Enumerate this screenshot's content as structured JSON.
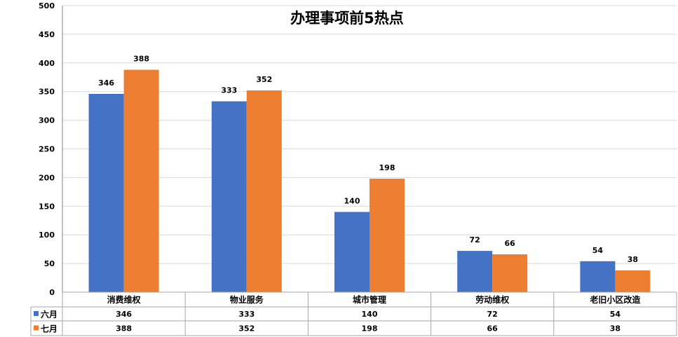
{
  "colors": {
    "series_1": "#4472C4",
    "series_2": "#ED7D31",
    "grid": "#D9D9D9",
    "axis": "#808080",
    "table_border": "#A6A6A6",
    "text": "#000000"
  },
  "chart_data": {
    "type": "bar",
    "title": "办理事项前5热点",
    "categories": [
      "消费维权",
      "物业服务",
      "城市管理",
      "劳动维权",
      "老旧小区改造"
    ],
    "series": [
      {
        "name": "六月",
        "values": [
          346,
          333,
          140,
          72,
          54
        ]
      },
      {
        "name": "七月",
        "values": [
          388,
          352,
          198,
          66,
          38
        ]
      }
    ],
    "ylim": [
      0,
      500
    ],
    "yticks": [
      0,
      50,
      100,
      150,
      200,
      250,
      300,
      350,
      400,
      450,
      500
    ],
    "grid": true,
    "data_labels": true,
    "data_table": true,
    "xlabel": "",
    "ylabel": ""
  }
}
